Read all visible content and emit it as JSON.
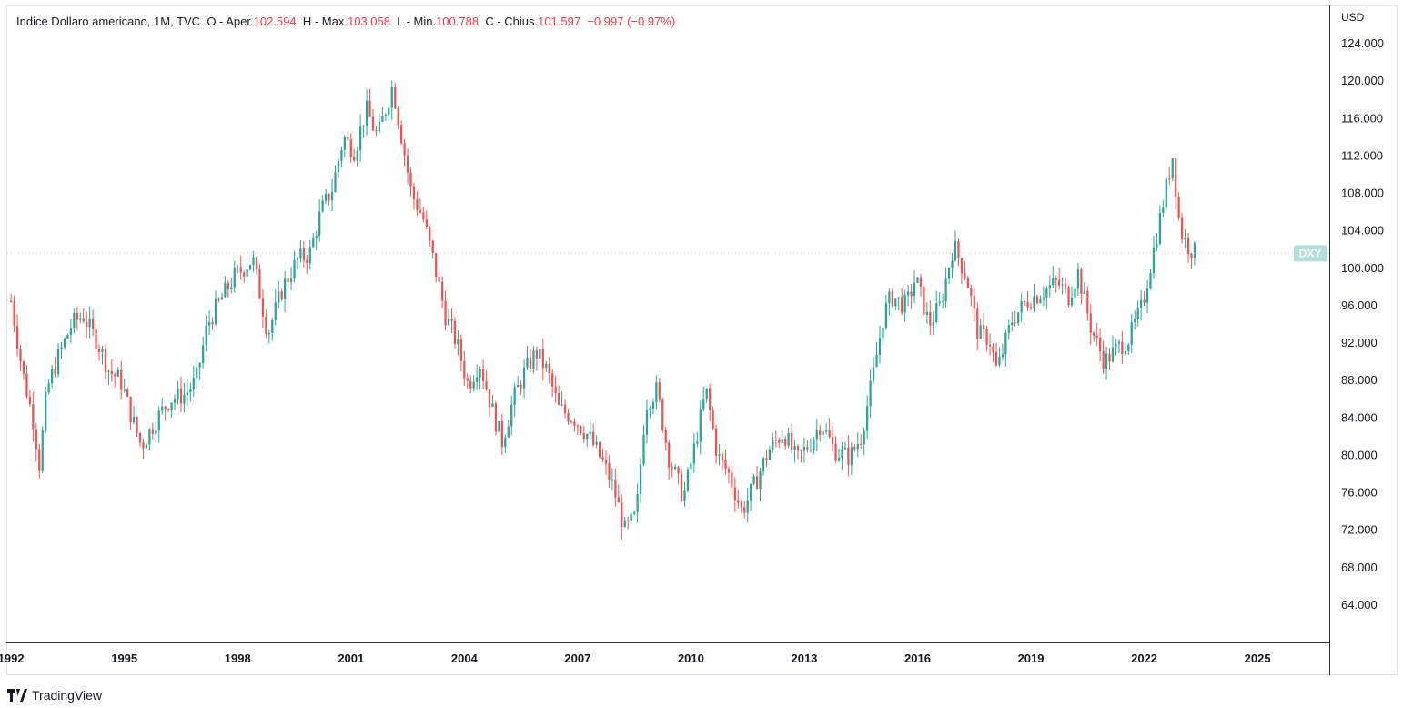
{
  "legend": {
    "name": "Indice Dollaro americano, 1M, TVC",
    "open_label": "O - Aper.",
    "open": "102.594",
    "high_label": "H - Max.",
    "high": "103.058",
    "low_label": "L - Min.",
    "low": "100.788",
    "close_label": "C - Chius.",
    "close": "101.597",
    "change": "−0.997 (−0.97%)"
  },
  "currency": "USD",
  "branding": "TradingView",
  "colors": {
    "up": "#26a69a",
    "down": "#ef5350",
    "badge": "#b2dfdb",
    "grid": "#e0e3eb"
  },
  "chart_data": {
    "type": "candlestick",
    "title": "Indice Dollaro americano, 1M, TVC",
    "symbol": "DXY",
    "last_price": 101.597,
    "ylabel": "USD",
    "ylim": [
      60,
      128
    ],
    "xlim": [
      1991.9,
      2026.9
    ],
    "y_ticks": [
      "64.000",
      "68.000",
      "72.000",
      "76.000",
      "80.000",
      "84.000",
      "88.000",
      "92.000",
      "96.000",
      "100.000",
      "104.000",
      "108.000",
      "112.000",
      "116.000",
      "120.000",
      "124.000"
    ],
    "x_ticks": [
      "1992",
      "1995",
      "1998",
      "2001",
      "2004",
      "2007",
      "2010",
      "2013",
      "2016",
      "2019",
      "2022",
      "2025"
    ],
    "close_series": [
      {
        "t": 1992.0,
        "c": 96.5
      },
      {
        "t": 1992.3,
        "c": 89.0
      },
      {
        "t": 1992.6,
        "c": 83.5
      },
      {
        "t": 1992.75,
        "c": 79.0
      },
      {
        "t": 1992.95,
        "c": 87.0
      },
      {
        "t": 1993.2,
        "c": 90.0
      },
      {
        "t": 1993.6,
        "c": 94.0
      },
      {
        "t": 1993.9,
        "c": 95.0
      },
      {
        "t": 1994.3,
        "c": 92.0
      },
      {
        "t": 1994.6,
        "c": 89.0
      },
      {
        "t": 1994.9,
        "c": 88.0
      },
      {
        "t": 1995.2,
        "c": 84.0
      },
      {
        "t": 1995.45,
        "c": 81.0
      },
      {
        "t": 1995.8,
        "c": 83.5
      },
      {
        "t": 1996.2,
        "c": 86.0
      },
      {
        "t": 1996.6,
        "c": 86.5
      },
      {
        "t": 1996.9,
        "c": 88.0
      },
      {
        "t": 1997.2,
        "c": 94.0
      },
      {
        "t": 1997.6,
        "c": 97.0
      },
      {
        "t": 1997.9,
        "c": 99.0
      },
      {
        "t": 1998.4,
        "c": 101.0
      },
      {
        "t": 1998.8,
        "c": 93.0
      },
      {
        "t": 1999.2,
        "c": 98.0
      },
      {
        "t": 1999.6,
        "c": 101.0
      },
      {
        "t": 1999.9,
        "c": 101.5
      },
      {
        "t": 2000.2,
        "c": 106.0
      },
      {
        "t": 2000.5,
        "c": 108.5
      },
      {
        "t": 2000.8,
        "c": 114.0
      },
      {
        "t": 2001.1,
        "c": 112.5
      },
      {
        "t": 2001.4,
        "c": 117.0
      },
      {
        "t": 2001.7,
        "c": 114.0
      },
      {
        "t": 2002.1,
        "c": 119.5
      },
      {
        "t": 2002.3,
        "c": 115.0
      },
      {
        "t": 2002.6,
        "c": 108.0
      },
      {
        "t": 2002.9,
        "c": 105.5
      },
      {
        "t": 2003.2,
        "c": 100.5
      },
      {
        "t": 2003.5,
        "c": 95.0
      },
      {
        "t": 2003.8,
        "c": 92.0
      },
      {
        "t": 2004.1,
        "c": 87.5
      },
      {
        "t": 2004.4,
        "c": 90.0
      },
      {
        "t": 2004.8,
        "c": 84.0
      },
      {
        "t": 2005.0,
        "c": 81.5
      },
      {
        "t": 2005.3,
        "c": 86.0
      },
      {
        "t": 2005.6,
        "c": 89.0
      },
      {
        "t": 2005.9,
        "c": 91.0
      },
      {
        "t": 2006.2,
        "c": 89.0
      },
      {
        "t": 2006.5,
        "c": 85.0
      },
      {
        "t": 2006.9,
        "c": 84.0
      },
      {
        "t": 2007.3,
        "c": 82.0
      },
      {
        "t": 2007.7,
        "c": 79.0
      },
      {
        "t": 2007.95,
        "c": 76.5
      },
      {
        "t": 2008.25,
        "c": 72.0
      },
      {
        "t": 2008.55,
        "c": 73.5
      },
      {
        "t": 2008.8,
        "c": 85.5
      },
      {
        "t": 2009.1,
        "c": 87.0
      },
      {
        "t": 2009.4,
        "c": 80.0
      },
      {
        "t": 2009.8,
        "c": 75.5
      },
      {
        "t": 2010.05,
        "c": 80.0
      },
      {
        "t": 2010.4,
        "c": 87.0
      },
      {
        "t": 2010.7,
        "c": 80.0
      },
      {
        "t": 2011.0,
        "c": 78.0
      },
      {
        "t": 2011.35,
        "c": 74.0
      },
      {
        "t": 2011.7,
        "c": 77.0
      },
      {
        "t": 2012.05,
        "c": 80.5
      },
      {
        "t": 2012.45,
        "c": 82.5
      },
      {
        "t": 2012.8,
        "c": 79.5
      },
      {
        "t": 2013.1,
        "c": 81.0
      },
      {
        "t": 2013.45,
        "c": 83.5
      },
      {
        "t": 2013.8,
        "c": 80.5
      },
      {
        "t": 2014.2,
        "c": 79.8
      },
      {
        "t": 2014.5,
        "c": 82.0
      },
      {
        "t": 2014.8,
        "c": 88.0
      },
      {
        "t": 2015.1,
        "c": 95.0
      },
      {
        "t": 2015.3,
        "c": 97.0
      },
      {
        "t": 2015.7,
        "c": 96.0
      },
      {
        "t": 2015.95,
        "c": 99.0
      },
      {
        "t": 2016.3,
        "c": 94.0
      },
      {
        "t": 2016.6,
        "c": 96.0
      },
      {
        "t": 2016.95,
        "c": 102.5
      },
      {
        "t": 2017.3,
        "c": 99.0
      },
      {
        "t": 2017.6,
        "c": 93.0
      },
      {
        "t": 2017.9,
        "c": 92.5
      },
      {
        "t": 2018.1,
        "c": 89.0
      },
      {
        "t": 2018.5,
        "c": 94.5
      },
      {
        "t": 2018.9,
        "c": 96.5
      },
      {
        "t": 2019.3,
        "c": 97.5
      },
      {
        "t": 2019.7,
        "c": 98.5
      },
      {
        "t": 2020.0,
        "c": 97.0
      },
      {
        "t": 2020.25,
        "c": 99.5
      },
      {
        "t": 2020.6,
        "c": 93.5
      },
      {
        "t": 2020.95,
        "c": 90.0
      },
      {
        "t": 2021.3,
        "c": 91.5
      },
      {
        "t": 2021.6,
        "c": 92.5
      },
      {
        "t": 2021.95,
        "c": 96.0
      },
      {
        "t": 2022.3,
        "c": 103.0
      },
      {
        "t": 2022.55,
        "c": 108.0
      },
      {
        "t": 2022.75,
        "c": 112.0
      },
      {
        "t": 2022.95,
        "c": 104.0
      },
      {
        "t": 2023.15,
        "c": 102.5
      },
      {
        "t": 2023.35,
        "c": 101.6
      }
    ],
    "series": [
      {
        "name": "DXY",
        "values": "close_series"
      }
    ]
  }
}
